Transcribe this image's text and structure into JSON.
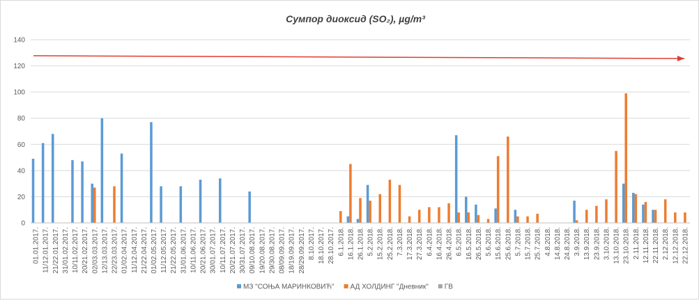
{
  "chart_data": {
    "type": "bar",
    "title": "Сумпор диоксид (SO₂), µg/m³",
    "categories": [
      "01.01.2017.",
      "11/12.01.2017.",
      "21/22.01.2017.",
      "31/01.02.2017.",
      "10/11.02.2017.",
      "20/21.02.2017.",
      "02/03.03.2017.",
      "12/13.03.2017.",
      "22/23.03.2017.",
      "01/02.04.2017.",
      "11/12.04.2017.",
      "21/22.04.2017.",
      "01/02.05.2017.",
      "11/12.05.2017.",
      "21/22.05.2017.",
      "31/01.06.2017.",
      "10/11.06.2017.",
      "20/21.06.2017.",
      "30/01.07.2017.",
      "10/11.07.2017.",
      "20/21.07.2017.",
      "30/31.07.2017.",
      "09/10.08.2017.",
      "19/20.08.2017.",
      "29/30.08.2017.",
      "08/09.09.2017.",
      "18/19.09.2017.",
      "28/29.09.2017.",
      "8.10.2017.",
      "18.10.2017.",
      "28.10.2017.",
      "6.1.2018.",
      "16.1.2018.",
      "26.1.2018.",
      "5.2.2018.",
      "15.2.2018.",
      "25.2.2018.",
      "7.3.2018.",
      "17.3.2018.",
      "27.3.2018.",
      "6.4.2018.",
      "16.4.2018.",
      "26.4.2018.",
      "6.5.2018.",
      "16.5.2018.",
      "26.5.2018.",
      "5.6.2018.",
      "15.6.2018.",
      "25.6.2018.",
      "5.7.2018.",
      "15.7.2018.",
      "25.7.2018.",
      "4.8.2018.",
      "14.8.2018.",
      "24.8.2018.",
      "3.9.2018.",
      "13.9.2018.",
      "23.9.2018.",
      "3.10.2018.",
      "13.10.2018.",
      "23.10.2018.",
      "2.11.2018.",
      "12.11.2018.",
      "22.11.2018.",
      "2.12.2018.",
      "12.12.2018.",
      "22.12.2018."
    ],
    "series": [
      {
        "name": "МЗ \"СОЊА МАРИНКОВИЋ\"",
        "color": "#5b9bd5",
        "values": [
          49,
          61,
          68,
          0,
          48,
          47,
          30,
          80,
          0,
          53,
          0,
          0,
          77,
          28,
          0,
          28,
          0,
          33,
          0,
          34,
          0,
          0,
          24,
          0,
          0,
          0,
          0,
          0,
          0,
          0,
          0,
          0,
          5,
          3,
          29,
          0,
          0,
          0,
          0,
          0,
          0,
          0,
          0,
          67,
          20,
          14,
          0,
          11,
          0,
          10,
          0,
          0,
          0,
          0,
          0,
          17,
          0,
          0,
          0,
          0,
          30,
          23,
          14,
          10,
          0,
          0,
          0
        ]
      },
      {
        "name": "АД ХОЛДИНГ \"Дневник\"",
        "color": "#ed7d31",
        "values": [
          0,
          0,
          0,
          0,
          0,
          0,
          27,
          0,
          28,
          0,
          0,
          0,
          0,
          0,
          0,
          0,
          0,
          0,
          0,
          0,
          0,
          0,
          0,
          0,
          0,
          0,
          0,
          0,
          0,
          0,
          0,
          9,
          45,
          19,
          17,
          22,
          33,
          29,
          5,
          10,
          12,
          12,
          15,
          8,
          8,
          6,
          3,
          51,
          66,
          5,
          5,
          7,
          0,
          0,
          0,
          2,
          10,
          13,
          18,
          55,
          99,
          22,
          16,
          10,
          18,
          8,
          8
        ]
      },
      {
        "name": "ГВ",
        "color": "#a5a5a5",
        "values": [
          0,
          0,
          0,
          0,
          0,
          0,
          0,
          0,
          0,
          0,
          0,
          0,
          0,
          0,
          0,
          0,
          0,
          0,
          0,
          0,
          0,
          0,
          0,
          0,
          0,
          0,
          0,
          0,
          0,
          0,
          0,
          0,
          0,
          0,
          0,
          0,
          0,
          0,
          0,
          0,
          0,
          0,
          0,
          0,
          0,
          0,
          0,
          0,
          0,
          0,
          0,
          0,
          0,
          0,
          0,
          0,
          0,
          0,
          0,
          0,
          0,
          0,
          0,
          0,
          0,
          0,
          0
        ]
      }
    ],
    "ylim": [
      0,
      140
    ],
    "yticks": [
      0,
      20,
      40,
      60,
      80,
      100,
      120,
      140
    ],
    "grid": true,
    "legend": "bottom"
  }
}
